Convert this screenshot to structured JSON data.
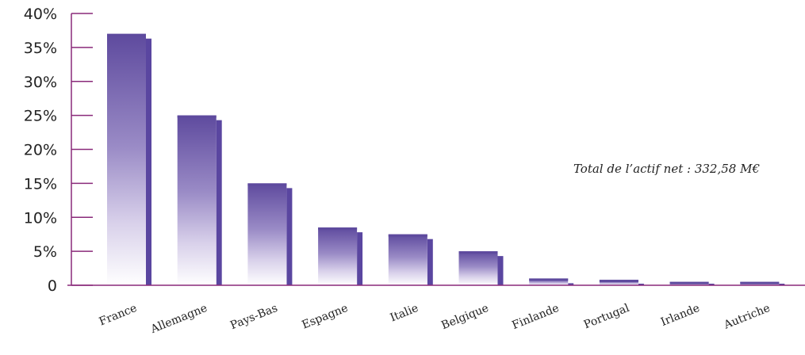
{
  "chart_data": {
    "type": "bar",
    "categories": [
      "France",
      "Allemagne",
      "Pays-Bas",
      "Espagne",
      "Italie",
      "Belgique",
      "Finlande",
      "Portugal",
      "Irlande",
      "Autriche"
    ],
    "values": [
      37,
      25,
      15,
      8.5,
      7.5,
      5,
      1,
      0.8,
      0.5,
      0.5
    ],
    "ylim": [
      0,
      40
    ],
    "yticks": [
      0,
      5,
      10,
      15,
      20,
      25,
      30,
      35,
      40
    ],
    "ytick_labels": [
      "0",
      "5%",
      "10%",
      "15%",
      "20%",
      "25%",
      "30%",
      "35%",
      "40%"
    ],
    "annotation": "Total de l’actif net : 332,58 M€",
    "grid": false,
    "colors": {
      "bar_top": "#5e4a9e",
      "bar_mid": "#9a8bc6",
      "bar_bottom": "#ffffff",
      "bar_shadow": "#5a46a0",
      "axis": "#8a2a7a"
    }
  }
}
